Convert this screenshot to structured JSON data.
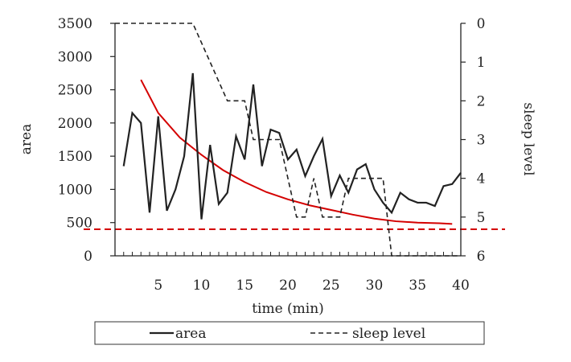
{
  "chart_data": {
    "type": "line",
    "xlabel": "time (min)",
    "ylabel": "area",
    "y2label": "sleep level",
    "xlim": [
      0,
      40
    ],
    "ylim": [
      0,
      3500
    ],
    "y2lim": [
      0,
      6
    ],
    "y2_inverted": true,
    "xticks": [
      5,
      10,
      15,
      20,
      25,
      30,
      35,
      40
    ],
    "yticks": [
      0,
      500,
      1000,
      1500,
      2000,
      2500,
      3000,
      3500
    ],
    "y2ticks": [
      0,
      1,
      2,
      3,
      4,
      5,
      6
    ],
    "legend_position": "bottom",
    "series": [
      {
        "name": "area",
        "axis": "left",
        "style": "solid",
        "color": "#222222",
        "x": [
          1,
          2,
          3,
          4,
          5,
          6,
          7,
          8,
          9,
          10,
          11,
          12,
          13,
          14,
          15,
          16,
          17,
          18,
          19,
          20,
          21,
          22,
          23,
          24,
          25,
          26,
          27,
          28,
          29,
          30,
          31,
          32,
          33,
          34,
          35,
          36,
          37,
          38,
          39,
          40
        ],
        "values": [
          1350,
          2150,
          2000,
          650,
          2100,
          680,
          1000,
          1500,
          2750,
          550,
          1670,
          780,
          950,
          1800,
          1450,
          2580,
          1350,
          1900,
          1850,
          1450,
          1600,
          1200,
          1500,
          1760,
          900,
          1210,
          950,
          1300,
          1380,
          1000,
          800,
          650,
          950,
          850,
          800,
          800,
          750,
          1050,
          1080,
          1250
        ]
      },
      {
        "name": "sleep level",
        "axis": "right",
        "style": "dashed",
        "color": "#222222",
        "x": [
          0,
          9,
          13,
          15,
          16,
          17,
          19,
          20,
          21,
          22,
          23,
          24,
          25,
          26,
          27,
          29,
          30,
          31,
          32,
          33,
          40
        ],
        "values": [
          0,
          0,
          2,
          2,
          3,
          3,
          3,
          4,
          5,
          5,
          4,
          5,
          5,
          5,
          4,
          4,
          4,
          4,
          6,
          6,
          6
        ]
      }
    ],
    "annotations": [
      {
        "type": "curve",
        "color": "#d40000",
        "axis": "left",
        "x": [
          3,
          5,
          7.5,
          10,
          12.5,
          15,
          17.5,
          20,
          22.5,
          25,
          27.5,
          30,
          32.5,
          35,
          37.5,
          39
        ],
        "values": [
          2650,
          2150,
          1780,
          1520,
          1290,
          1110,
          960,
          850,
          760,
          690,
          620,
          560,
          520,
          500,
          490,
          480
        ]
      },
      {
        "type": "hline",
        "color": "#d40000",
        "style": "dashed",
        "axis": "left",
        "value": 400
      }
    ]
  }
}
